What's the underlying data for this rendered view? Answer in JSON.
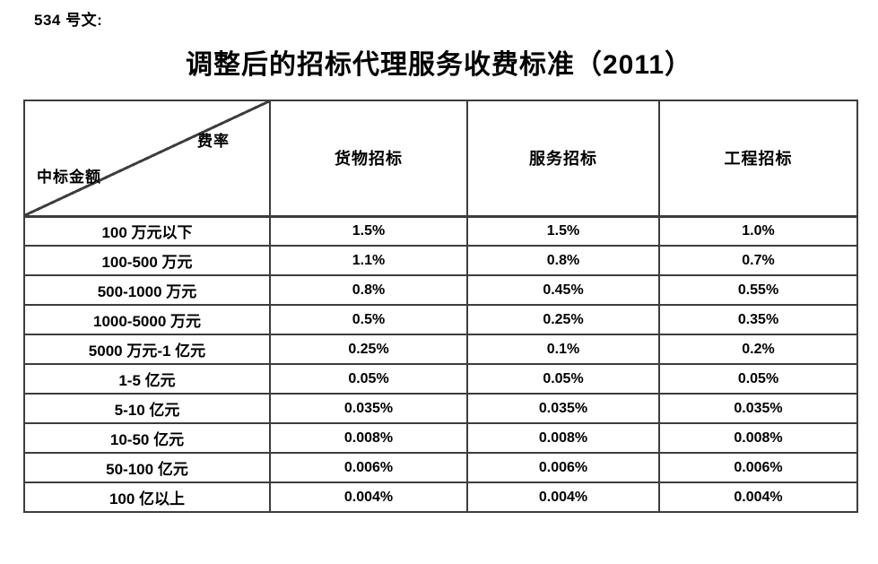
{
  "doc_label": "534 号文:",
  "title": "调整后的招标代理服务收费标准（2011）",
  "table": {
    "corner": {
      "top_right": "费率",
      "bottom_left": "中标金额"
    },
    "columns": [
      "货物招标",
      "服务招标",
      "工程招标"
    ],
    "rows": [
      {
        "label": "100 万元以下",
        "values": [
          "1.5%",
          "1.5%",
          "1.0%"
        ]
      },
      {
        "label": "100-500 万元",
        "values": [
          "1.1%",
          "0.8%",
          "0.7%"
        ]
      },
      {
        "label": "500-1000 万元",
        "values": [
          "0.8%",
          "0.45%",
          "0.55%"
        ]
      },
      {
        "label": "1000-5000 万元",
        "values": [
          "0.5%",
          "0.25%",
          "0.35%"
        ]
      },
      {
        "label": "5000 万元-1 亿元",
        "values": [
          "0.25%",
          "0.1%",
          "0.2%"
        ]
      },
      {
        "label": "1-5 亿元",
        "values": [
          "0.05%",
          "0.05%",
          "0.05%"
        ]
      },
      {
        "label": "5-10 亿元",
        "values": [
          "0.035%",
          "0.035%",
          "0.035%"
        ]
      },
      {
        "label": "10-50 亿元",
        "values": [
          "0.008%",
          "0.008%",
          "0.008%"
        ]
      },
      {
        "label": "50-100 亿元",
        "values": [
          "0.006%",
          "0.006%",
          "0.006%"
        ]
      },
      {
        "label": "100 亿以上",
        "values": [
          "0.004%",
          "0.004%",
          "0.004%"
        ]
      }
    ]
  },
  "colors": {
    "background": "#ffffff",
    "text": "#000000",
    "border": "#3d3d3d"
  }
}
